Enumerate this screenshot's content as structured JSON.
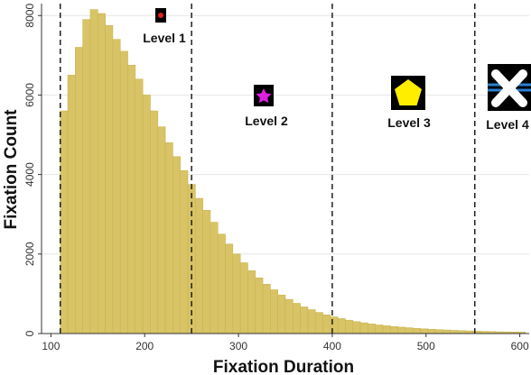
{
  "chart_data": {
    "type": "bar",
    "xlabel": "Fixation Duration",
    "ylabel": "Fixation Count",
    "xlim": [
      90,
      610
    ],
    "ylim": [
      0,
      8300
    ],
    "xticks": [
      100,
      200,
      300,
      400,
      500,
      600
    ],
    "yticks": [
      0,
      2000,
      4000,
      6000,
      8000
    ],
    "grid": "horizontal",
    "bar_color": "#d8c466",
    "bin_width": 8,
    "bins_start": [
      110,
      118,
      126,
      134,
      142,
      150,
      158,
      166,
      174,
      182,
      190,
      198,
      206,
      214,
      222,
      230,
      238,
      246,
      254,
      262,
      270,
      278,
      286,
      294,
      302,
      310,
      318,
      326,
      334,
      342,
      350,
      358,
      366,
      374,
      382,
      390,
      398,
      406,
      414,
      422,
      430,
      438,
      446,
      454,
      462,
      470,
      478,
      486,
      494,
      502,
      510,
      518,
      526,
      534,
      542,
      550,
      558,
      566,
      574,
      582,
      590,
      598
    ],
    "values": [
      5600,
      6500,
      7200,
      7900,
      8150,
      8050,
      7750,
      7400,
      7100,
      6750,
      6400,
      6000,
      5600,
      5200,
      4800,
      4450,
      4100,
      3750,
      3400,
      3100,
      2800,
      2500,
      2250,
      2000,
      1780,
      1580,
      1400,
      1240,
      1100,
      970,
      860,
      760,
      670,
      600,
      530,
      470,
      420,
      375,
      335,
      300,
      270,
      240,
      215,
      195,
      175,
      160,
      145,
      130,
      118,
      107,
      97,
      88,
      80,
      73,
      66,
      60,
      55,
      50,
      45,
      41,
      38,
      35
    ],
    "thresholds": [
      110,
      250,
      400,
      552
    ],
    "levels": [
      {
        "label": "Level 1",
        "icon": "red-dot-icon"
      },
      {
        "label": "Level 2",
        "icon": "magenta-star-icon"
      },
      {
        "label": "Level 3",
        "icon": "yellow-pentagon-icon"
      },
      {
        "label": "Level 4",
        "icon": "white-cross-icon"
      }
    ]
  }
}
